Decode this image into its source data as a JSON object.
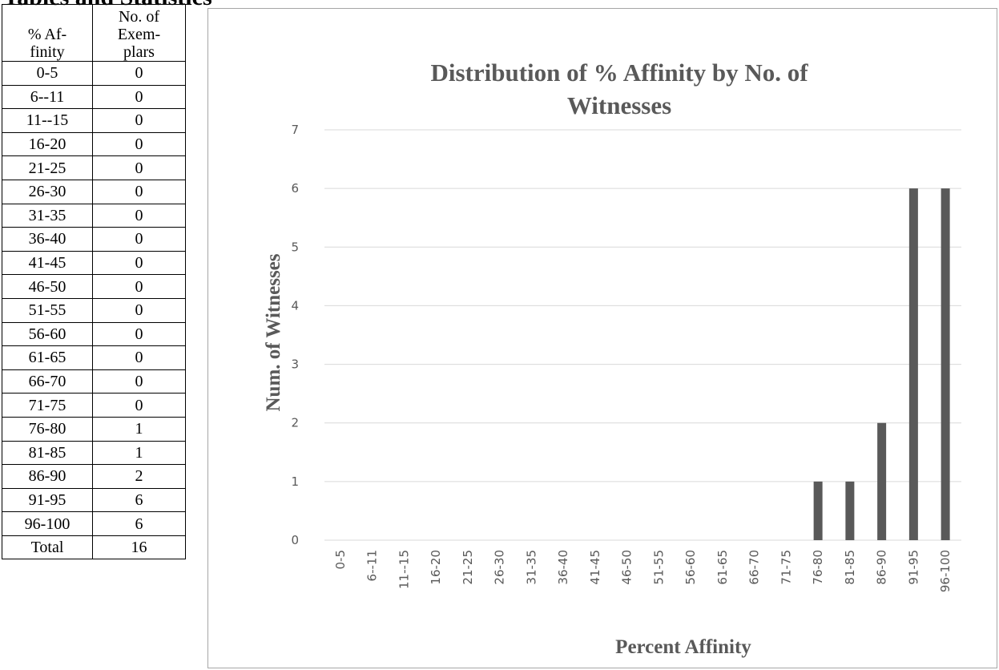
{
  "heading": "Tables and Statistics",
  "table": {
    "header_col1_lines": [
      "% Af-",
      "finity"
    ],
    "header_col2_lines": [
      "No. of",
      "Exem-",
      "plars"
    ],
    "rows": [
      {
        "range": "0-5",
        "count": "0"
      },
      {
        "range": "6--11",
        "count": "0"
      },
      {
        "range": "11--15",
        "count": "0"
      },
      {
        "range": "16-20",
        "count": "0"
      },
      {
        "range": "21-25",
        "count": "0"
      },
      {
        "range": "26-30",
        "count": "0"
      },
      {
        "range": "31-35",
        "count": "0"
      },
      {
        "range": "36-40",
        "count": "0"
      },
      {
        "range": "41-45",
        "count": "0"
      },
      {
        "range": "46-50",
        "count": "0"
      },
      {
        "range": "51-55",
        "count": "0"
      },
      {
        "range": "56-60",
        "count": "0"
      },
      {
        "range": "61-65",
        "count": "0"
      },
      {
        "range": "66-70",
        "count": "0"
      },
      {
        "range": "71-75",
        "count": "0"
      },
      {
        "range": "76-80",
        "count": "1"
      },
      {
        "range": "81-85",
        "count": "1"
      },
      {
        "range": "86-90",
        "count": "2"
      },
      {
        "range": "91-95",
        "count": "6"
      },
      {
        "range": "96-100",
        "count": "6"
      }
    ],
    "total_label": "Total",
    "total_value": "16"
  },
  "chart_data": {
    "type": "bar",
    "title_lines": [
      "Distribution of % Affinity by No. of",
      "Witnesses"
    ],
    "xlabel": "Percent Affinity",
    "ylabel": "Num. of Witnesses",
    "categories": [
      "0-5",
      "6--11",
      "11--15",
      "16-20",
      "21-25",
      "26-30",
      "31-35",
      "36-40",
      "41-45",
      "46-50",
      "51-55",
      "56-60",
      "61-65",
      "66-70",
      "71-75",
      "76-80",
      "81-85",
      "86-90",
      "91-95",
      "96-100"
    ],
    "values": [
      0,
      0,
      0,
      0,
      0,
      0,
      0,
      0,
      0,
      0,
      0,
      0,
      0,
      0,
      0,
      1,
      1,
      2,
      6,
      6
    ],
    "ylim": [
      0,
      7
    ],
    "yticks": [
      0,
      1,
      2,
      3,
      4,
      5,
      6,
      7
    ],
    "grid": true,
    "legend": "none",
    "bar_color": "#595959",
    "grid_color": "#d9d9d9",
    "text_color": "#595959"
  }
}
